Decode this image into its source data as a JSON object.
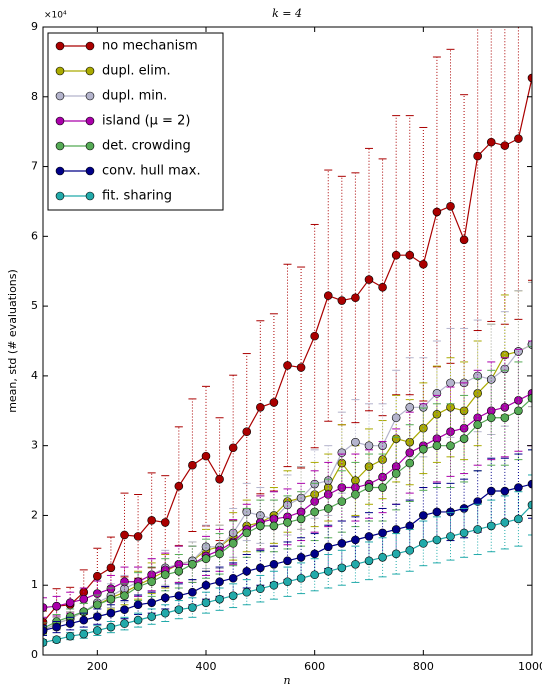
{
  "chart_data": {
    "type": "line",
    "title": "k = 4",
    "x_label": "n",
    "y_label": "mean, std (# evaluations)",
    "y_offset_label": "×10⁴",
    "x": [
      100,
      125,
      150,
      175,
      200,
      225,
      250,
      275,
      300,
      325,
      350,
      375,
      400,
      425,
      450,
      475,
      500,
      525,
      550,
      575,
      600,
      625,
      650,
      675,
      700,
      725,
      750,
      775,
      800,
      825,
      850,
      875,
      900,
      925,
      950,
      975,
      1000
    ],
    "xlim": [
      100,
      1000
    ],
    "xticks": [
      200,
      400,
      600,
      800,
      1000
    ],
    "ylim": [
      0,
      9
    ],
    "yticks": [
      0,
      1,
      2,
      3,
      4,
      5,
      6,
      7,
      8,
      9
    ],
    "legend": "upper left",
    "series": [
      {
        "name": "no mechanism",
        "color": "#aa0000",
        "values": [
          0.47,
          0.7,
          0.72,
          0.9,
          1.13,
          1.25,
          1.72,
          1.7,
          1.93,
          1.9,
          2.42,
          2.72,
          2.85,
          2.52,
          2.97,
          3.2,
          3.55,
          3.62,
          4.15,
          4.12,
          4.57,
          5.15,
          5.08,
          5.12,
          5.38,
          5.27,
          5.73,
          5.73,
          5.6,
          6.35,
          6.43,
          5.95,
          7.15,
          7.35,
          7.3,
          7.4,
          8.27
        ],
        "errors": [
          0.16,
          0.25,
          0.25,
          0.32,
          0.4,
          0.44,
          0.6,
          0.6,
          0.68,
          0.67,
          0.85,
          0.95,
          1.0,
          0.88,
          1.04,
          1.12,
          1.24,
          1.27,
          1.45,
          1.44,
          1.6,
          1.8,
          1.78,
          1.79,
          1.88,
          1.84,
          2.0,
          2.0,
          1.96,
          2.22,
          2.25,
          2.08,
          2.5,
          2.57,
          2.56,
          2.59,
          2.9
        ]
      },
      {
        "name": "dupl. elim.",
        "color": "#aaaa00",
        "values": [
          0.35,
          0.45,
          0.52,
          0.62,
          0.72,
          0.82,
          0.9,
          1.0,
          1.1,
          1.2,
          1.3,
          1.35,
          1.5,
          1.55,
          1.7,
          1.85,
          1.9,
          2.0,
          2.2,
          2.25,
          2.3,
          2.4,
          2.75,
          2.5,
          2.7,
          2.8,
          3.1,
          3.05,
          3.25,
          3.45,
          3.55,
          3.5,
          3.75,
          3.95,
          4.3,
          4.35,
          4.45
        ],
        "errors": [
          0.07,
          0.09,
          0.1,
          0.12,
          0.14,
          0.16,
          0.18,
          0.2,
          0.22,
          0.24,
          0.26,
          0.27,
          0.3,
          0.31,
          0.34,
          0.37,
          0.38,
          0.4,
          0.44,
          0.45,
          0.46,
          0.48,
          0.55,
          0.5,
          0.54,
          0.56,
          0.62,
          0.61,
          0.65,
          0.69,
          0.71,
          0.7,
          0.75,
          0.79,
          0.86,
          0.87,
          0.89
        ]
      },
      {
        "name": "dupl. min.",
        "color": "#b4b4cc",
        "values": [
          0.35,
          0.45,
          0.52,
          0.62,
          0.75,
          0.85,
          0.95,
          1.05,
          1.15,
          1.25,
          1.3,
          1.35,
          1.55,
          1.55,
          1.75,
          2.05,
          2.0,
          1.95,
          2.15,
          2.25,
          2.45,
          2.5,
          2.9,
          3.05,
          3.0,
          3.0,
          3.4,
          3.55,
          3.55,
          3.75,
          3.9,
          3.9,
          4.0,
          3.95,
          4.1,
          4.35,
          4.45
        ],
        "errors": [
          0.07,
          0.09,
          0.1,
          0.12,
          0.15,
          0.17,
          0.19,
          0.21,
          0.23,
          0.25,
          0.26,
          0.27,
          0.31,
          0.31,
          0.35,
          0.41,
          0.4,
          0.39,
          0.43,
          0.45,
          0.49,
          0.5,
          0.58,
          0.61,
          0.6,
          0.6,
          0.68,
          0.71,
          0.71,
          0.75,
          0.78,
          0.78,
          0.8,
          0.79,
          0.82,
          0.87,
          0.89
        ]
      },
      {
        "name": "island (μ = 2)",
        "color": "#aa00aa",
        "values": [
          0.68,
          0.7,
          0.75,
          0.8,
          0.88,
          0.95,
          1.05,
          1.05,
          1.15,
          1.22,
          1.3,
          1.3,
          1.42,
          1.5,
          1.62,
          1.8,
          1.9,
          1.95,
          1.98,
          2.05,
          2.2,
          2.3,
          2.4,
          2.4,
          2.45,
          2.55,
          2.7,
          2.9,
          3.0,
          3.1,
          3.2,
          3.25,
          3.4,
          3.5,
          3.55,
          3.65,
          3.75
        ],
        "errors": [
          0.14,
          0.14,
          0.15,
          0.16,
          0.18,
          0.19,
          0.21,
          0.21,
          0.23,
          0.24,
          0.26,
          0.26,
          0.28,
          0.3,
          0.32,
          0.36,
          0.38,
          0.39,
          0.4,
          0.41,
          0.44,
          0.46,
          0.48,
          0.48,
          0.49,
          0.51,
          0.54,
          0.58,
          0.6,
          0.62,
          0.64,
          0.65,
          0.68,
          0.7,
          0.71,
          0.73,
          0.75
        ]
      },
      {
        "name": "det. crowding",
        "color": "#55aa55",
        "values": [
          0.38,
          0.48,
          0.55,
          0.62,
          0.72,
          0.8,
          0.85,
          0.98,
          1.05,
          1.15,
          1.2,
          1.3,
          1.38,
          1.45,
          1.6,
          1.75,
          1.85,
          1.85,
          1.9,
          1.95,
          2.05,
          2.1,
          2.2,
          2.3,
          2.4,
          2.4,
          2.6,
          2.75,
          2.95,
          3.0,
          3.0,
          3.1,
          3.3,
          3.4,
          3.4,
          3.5,
          3.68
        ],
        "errors": [
          0.08,
          0.1,
          0.11,
          0.12,
          0.14,
          0.16,
          0.17,
          0.2,
          0.21,
          0.23,
          0.24,
          0.26,
          0.28,
          0.29,
          0.32,
          0.35,
          0.37,
          0.37,
          0.38,
          0.39,
          0.41,
          0.42,
          0.44,
          0.46,
          0.48,
          0.48,
          0.52,
          0.55,
          0.59,
          0.6,
          0.6,
          0.62,
          0.66,
          0.68,
          0.68,
          0.7,
          0.74
        ]
      },
      {
        "name": "conv. hull max.",
        "color": "#000088",
        "values": [
          0.35,
          0.4,
          0.45,
          0.5,
          0.55,
          0.6,
          0.65,
          0.72,
          0.75,
          0.82,
          0.85,
          0.9,
          1.0,
          1.05,
          1.1,
          1.2,
          1.25,
          1.3,
          1.35,
          1.4,
          1.45,
          1.55,
          1.6,
          1.65,
          1.7,
          1.75,
          1.8,
          1.85,
          2.0,
          2.05,
          2.05,
          2.1,
          2.2,
          2.35,
          2.35,
          2.4,
          2.45
        ],
        "errors": [
          0.07,
          0.08,
          0.09,
          0.1,
          0.11,
          0.12,
          0.13,
          0.14,
          0.15,
          0.16,
          0.17,
          0.18,
          0.2,
          0.21,
          0.22,
          0.24,
          0.25,
          0.26,
          0.27,
          0.28,
          0.29,
          0.31,
          0.32,
          0.33,
          0.34,
          0.35,
          0.36,
          0.37,
          0.4,
          0.41,
          0.41,
          0.42,
          0.44,
          0.47,
          0.47,
          0.48,
          0.49
        ]
      },
      {
        "name": "fit. sharing",
        "color": "#22aaaa",
        "values": [
          0.18,
          0.22,
          0.27,
          0.3,
          0.35,
          0.4,
          0.45,
          0.5,
          0.55,
          0.6,
          0.65,
          0.68,
          0.75,
          0.8,
          0.85,
          0.9,
          0.95,
          1.0,
          1.05,
          1.1,
          1.15,
          1.2,
          1.25,
          1.3,
          1.35,
          1.4,
          1.45,
          1.5,
          1.6,
          1.65,
          1.7,
          1.75,
          1.8,
          1.85,
          1.9,
          1.95,
          2.15
        ],
        "errors": [
          0.04,
          0.04,
          0.05,
          0.06,
          0.07,
          0.08,
          0.09,
          0.1,
          0.11,
          0.12,
          0.13,
          0.14,
          0.15,
          0.16,
          0.17,
          0.18,
          0.19,
          0.2,
          0.21,
          0.22,
          0.23,
          0.24,
          0.25,
          0.26,
          0.27,
          0.28,
          0.29,
          0.3,
          0.32,
          0.33,
          0.34,
          0.35,
          0.36,
          0.37,
          0.38,
          0.39,
          0.43
        ]
      }
    ]
  }
}
